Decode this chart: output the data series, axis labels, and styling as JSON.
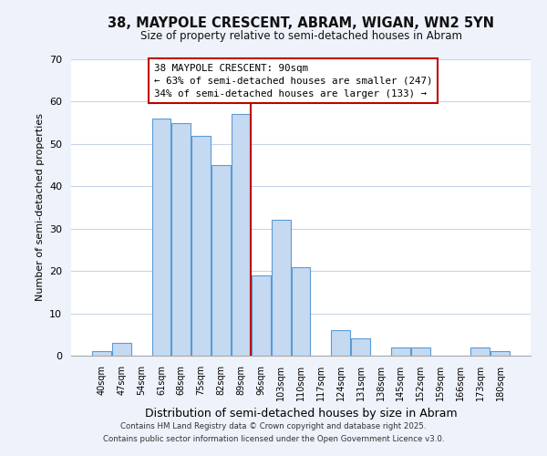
{
  "title": "38, MAYPOLE CRESCENT, ABRAM, WIGAN, WN2 5YN",
  "subtitle": "Size of property relative to semi-detached houses in Abram",
  "xlabel": "Distribution of semi-detached houses by size in Abram",
  "ylabel": "Number of semi-detached properties",
  "bar_labels": [
    "40sqm",
    "47sqm",
    "54sqm",
    "61sqm",
    "68sqm",
    "75sqm",
    "82sqm",
    "89sqm",
    "96sqm",
    "103sqm",
    "110sqm",
    "117sqm",
    "124sqm",
    "131sqm",
    "138sqm",
    "145sqm",
    "152sqm",
    "159sqm",
    "166sqm",
    "173sqm",
    "180sqm"
  ],
  "bar_values": [
    1,
    3,
    0,
    56,
    55,
    52,
    45,
    57,
    19,
    32,
    21,
    0,
    6,
    4,
    0,
    2,
    2,
    0,
    0,
    2,
    1
  ],
  "bar_color": "#c5d9f1",
  "bar_edge_color": "#5b9bd5",
  "vline_color": "#c00000",
  "ylim": [
    0,
    70
  ],
  "yticks": [
    0,
    10,
    20,
    30,
    40,
    50,
    60,
    70
  ],
  "annotation_title": "38 MAYPOLE CRESCENT: 90sqm",
  "annotation_line1": "← 63% of semi-detached houses are smaller (247)",
  "annotation_line2": "34% of semi-detached houses are larger (133) →",
  "annotation_box_color": "#ffffff",
  "annotation_box_edge": "#c00000",
  "footer_line1": "Contains HM Land Registry data © Crown copyright and database right 2025.",
  "footer_line2": "Contains public sector information licensed under the Open Government Licence v3.0.",
  "bg_color": "#eef2fa",
  "plot_bg_color": "#ffffff",
  "grid_color": "#c8d4e8"
}
